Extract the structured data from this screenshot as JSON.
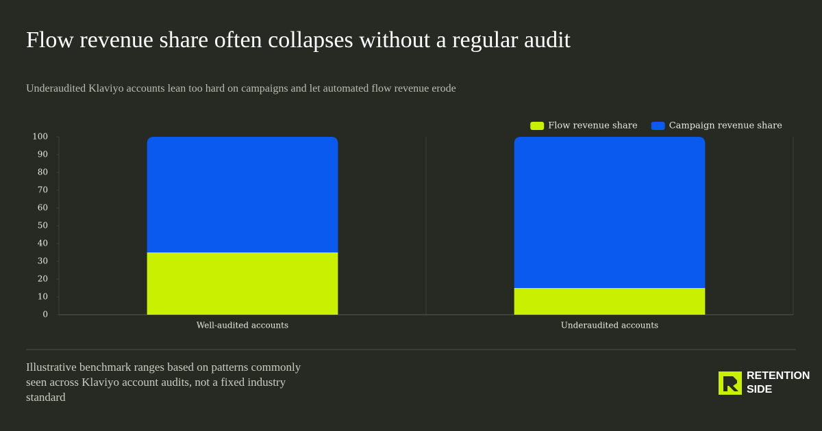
{
  "chart_data": {
    "type": "stacked-bar",
    "title": "Flow revenue share often collapses without a regular audit",
    "subtitle": "Underaudited Klaviyo accounts lean too hard on campaigns and let automated flow revenue erode",
    "categories": [
      "Well-audited accounts",
      "Underaudited accounts"
    ],
    "series": [
      {
        "name": "Flow revenue share",
        "color": "#c8f000",
        "values": [
          35,
          15
        ]
      },
      {
        "name": "Campaign revenue share",
        "color": "#0a5af0",
        "values": [
          65,
          85
        ]
      }
    ],
    "ylim": [
      0,
      100
    ],
    "yticks": [
      0,
      10,
      20,
      30,
      40,
      50,
      60,
      70,
      80,
      90,
      100
    ],
    "legend": "top-right",
    "footnote": "Illustrative benchmark ranges based on patterns commonly seen across Klaviyo account audits, not a fixed industry standard"
  },
  "logo": {
    "lines": [
      "RETENTION",
      "SIDE"
    ]
  }
}
